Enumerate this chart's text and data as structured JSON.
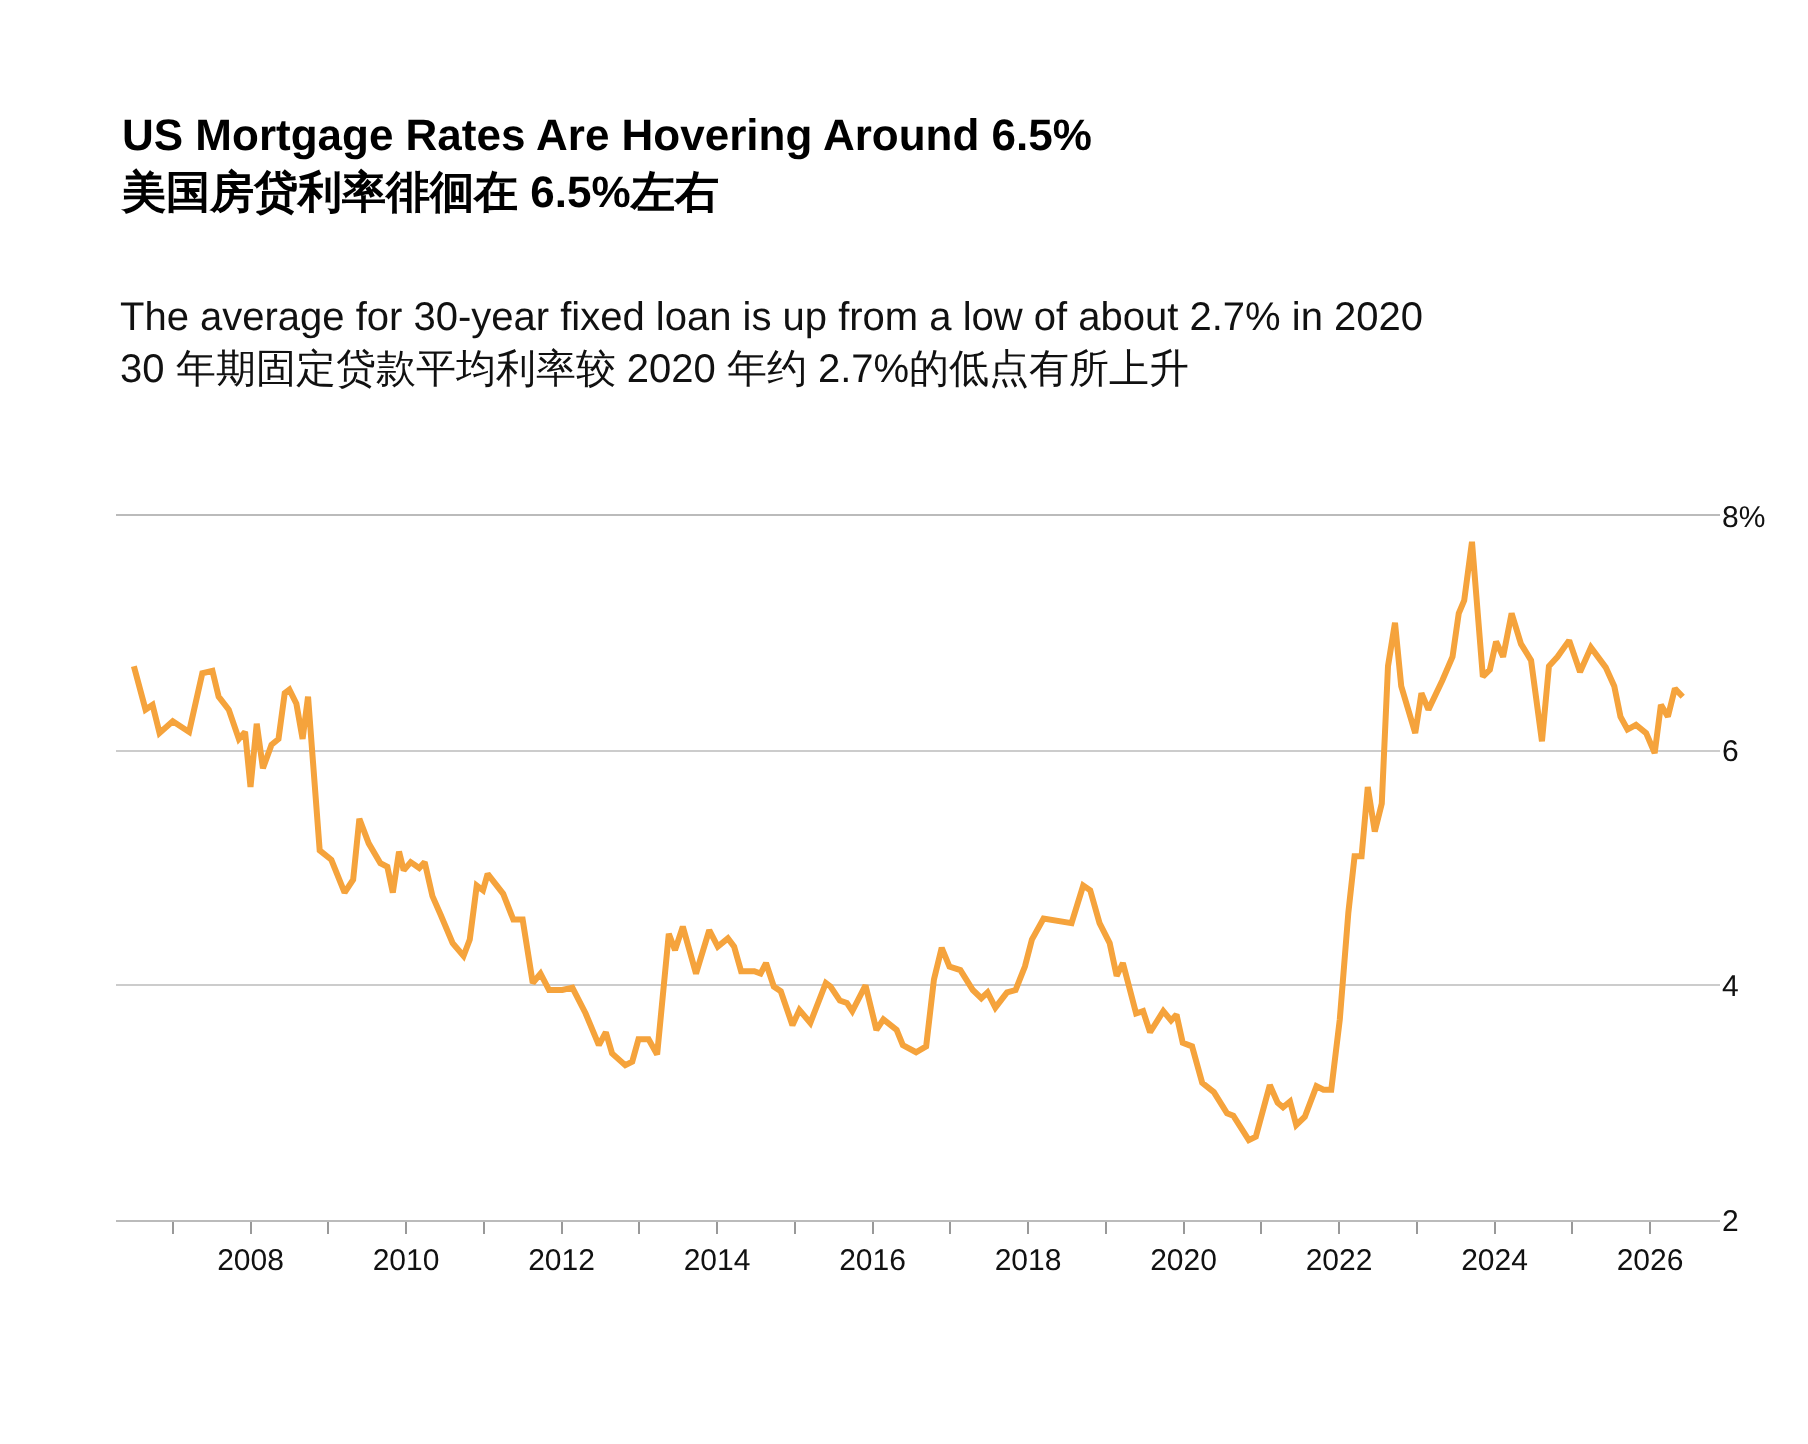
{
  "chart_data": {
    "type": "line",
    "title": "US Mortgage Rates Are Hovering Around 6.5%\n美国房贷利率徘徊在 6.5%左右",
    "subtitle": "The average for 30-year fixed loan is up from a low of about 2.7% in 2020\n30 年期固定贷款平均利率较 2020 年约 2.7%的低点有所上升",
    "x": [
      2006.5,
      2006.65,
      2006.74,
      2006.83,
      2007.0,
      2007.21,
      2007.38,
      2007.51,
      2007.59,
      2007.72,
      2007.85,
      2007.93,
      2008.0,
      2008.08,
      2008.16,
      2008.27,
      2008.36,
      2008.44,
      2008.5,
      2008.59,
      2008.67,
      2008.74,
      2008.89,
      2009.04,
      2009.21,
      2009.32,
      2009.4,
      2009.52,
      2009.67,
      2009.76,
      2009.83,
      2009.91,
      2009.97,
      2010.06,
      2010.17,
      2010.24,
      2010.34,
      2010.44,
      2010.6,
      2010.74,
      2010.82,
      2010.91,
      2010.99,
      2011.05,
      2011.25,
      2011.38,
      2011.5,
      2011.63,
      2011.73,
      2011.84,
      2012.01,
      2012.14,
      2012.31,
      2012.48,
      2012.57,
      2012.65,
      2012.82,
      2012.91,
      2012.99,
      2013.12,
      2013.23,
      2013.38,
      2013.46,
      2013.56,
      2013.73,
      2013.9,
      2014.01,
      2014.14,
      2014.22,
      2014.31,
      2014.48,
      2014.56,
      2014.63,
      2014.73,
      2014.82,
      2014.97,
      2015.06,
      2015.2,
      2015.4,
      2015.46,
      2015.58,
      2015.67,
      2015.74,
      2015.91,
      2016.05,
      2016.14,
      2016.31,
      2016.39,
      2016.56,
      2016.69,
      2016.79,
      2016.89,
      2016.99,
      2017.13,
      2017.29,
      2017.4,
      2017.48,
      2017.58,
      2017.73,
      2017.84,
      2017.96,
      2018.05,
      2018.2,
      2018.56,
      2018.71,
      2018.8,
      2018.92,
      2019.05,
      2019.14,
      2019.22,
      2019.39,
      2019.48,
      2019.57,
      2019.74,
      2019.84,
      2019.91,
      2019.99,
      2020.11,
      2020.24,
      2020.39,
      2020.56,
      2020.64,
      2020.84,
      2020.93,
      2021.11,
      2021.21,
      2021.28,
      2021.37,
      2021.45,
      2021.56,
      2021.71,
      2021.8,
      2021.9,
      2022.01,
      2022.12,
      2022.2,
      2022.29,
      2022.37,
      2022.46,
      2022.55,
      2022.63,
      2022.72,
      2022.8,
      2022.89,
      2022.98,
      2023.06,
      2023.15,
      2023.33,
      2023.46,
      2023.54,
      2023.61,
      2023.71,
      2023.85,
      2023.94,
      2024.02,
      2024.11,
      2024.22,
      2024.34,
      2024.47,
      2024.61,
      2024.7,
      2024.81,
      2024.96,
      2025.1,
      2025.24,
      2025.43,
      2025.54,
      2025.62,
      2025.71,
      2025.82,
      2025.95,
      2026.06,
      2026.14,
      2026.23,
      2026.32,
      2026.42
    ],
    "series": [
      {
        "color": "#f5a33c",
        "values": [
          6.72,
          6.35,
          6.39,
          6.15,
          6.25,
          6.16,
          6.66,
          6.68,
          6.46,
          6.35,
          6.1,
          6.16,
          5.69,
          6.23,
          5.85,
          6.05,
          6.1,
          6.49,
          6.52,
          6.4,
          6.1,
          6.46,
          5.15,
          5.07,
          4.79,
          4.9,
          5.42,
          5.21,
          5.04,
          5.01,
          4.79,
          5.14,
          4.98,
          5.05,
          5.0,
          5.05,
          4.76,
          4.61,
          4.36,
          4.25,
          4.39,
          4.85,
          4.81,
          4.95,
          4.78,
          4.56,
          4.56,
          4.02,
          4.1,
          3.96,
          3.96,
          3.98,
          3.76,
          3.49,
          3.6,
          3.42,
          3.32,
          3.35,
          3.54,
          3.54,
          3.41,
          4.44,
          4.3,
          4.5,
          4.1,
          4.47,
          4.33,
          4.4,
          4.33,
          4.12,
          4.12,
          4.1,
          4.19,
          3.99,
          3.95,
          3.66,
          3.79,
          3.68,
          4.02,
          3.99,
          3.87,
          3.85,
          3.78,
          4.0,
          3.62,
          3.71,
          3.62,
          3.49,
          3.43,
          3.48,
          4.05,
          4.32,
          4.16,
          4.13,
          3.96,
          3.89,
          3.94,
          3.81,
          3.94,
          3.96,
          4.16,
          4.39,
          4.57,
          4.53,
          4.85,
          4.81,
          4.53,
          4.36,
          4.08,
          4.19,
          3.76,
          3.78,
          3.6,
          3.78,
          3.7,
          3.75,
          3.51,
          3.48,
          3.17,
          3.09,
          2.91,
          2.89,
          2.68,
          2.71,
          3.15,
          3.0,
          2.96,
          3.01,
          2.81,
          2.88,
          3.14,
          3.11,
          3.11,
          3.71,
          4.62,
          5.1,
          5.1,
          5.69,
          5.31,
          5.55,
          6.72,
          7.09,
          6.55,
          6.35,
          6.15,
          6.49,
          6.35,
          6.6,
          6.8,
          7.17,
          7.28,
          7.78,
          6.63,
          6.69,
          6.93,
          6.8,
          7.17,
          6.91,
          6.77,
          6.08,
          6.72,
          6.8,
          6.94,
          6.67,
          6.88,
          6.71,
          6.55,
          6.29,
          6.18,
          6.22,
          6.15,
          5.98,
          6.39,
          6.29,
          6.53,
          6.46
        ]
      }
    ],
    "xlim": [
      2006.27,
      2026.9
    ],
    "xticks": [
      {
        "value": 2007,
        "label": null
      },
      2008,
      {
        "value": 2009,
        "label": null
      },
      2010,
      {
        "value": 2011,
        "label": null
      },
      2012,
      {
        "value": 2013,
        "label": null
      },
      2014,
      {
        "value": 2015,
        "label": null
      },
      2016,
      {
        "value": 2017,
        "label": null
      },
      2018,
      {
        "value": 2019,
        "label": null
      },
      2020,
      {
        "value": 2021,
        "label": null
      },
      2022,
      {
        "value": 2023,
        "label": null
      },
      2024,
      {
        "value": 2025,
        "label": null
      },
      2026
    ],
    "ylim": [
      2,
      8
    ],
    "yticks": [
      2,
      4,
      6,
      {
        "value": 8,
        "label": "8%"
      }
    ],
    "grid": "y",
    "line_style": "solid",
    "marker": "none"
  }
}
